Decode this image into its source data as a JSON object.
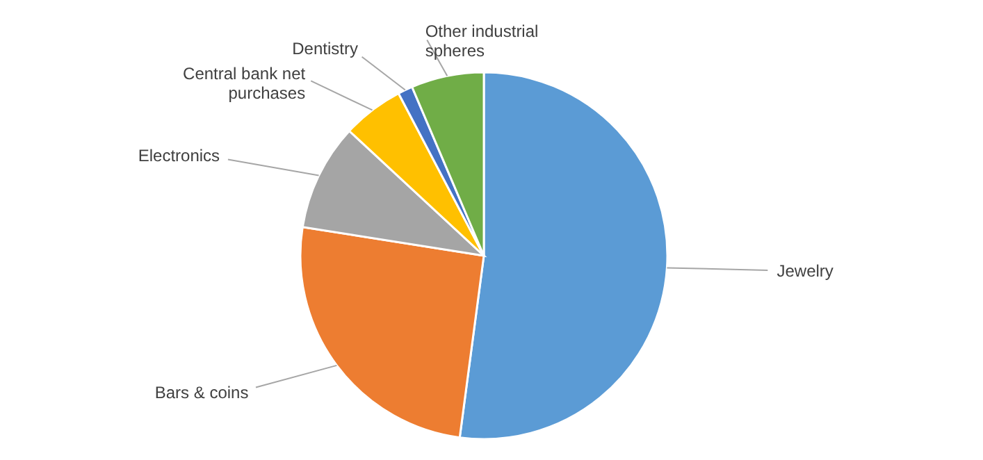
{
  "chart_data": {
    "type": "pie",
    "categories": [
      "Jewelry",
      "Bars & coins",
      "Electronics",
      "Central bank net\npurchases",
      "Dentistry",
      "Other industrial\nspheres"
    ],
    "values": [
      52.1,
      25.4,
      9.4,
      5.4,
      1.3,
      6.4
    ],
    "colors": [
      "#5b9bd5",
      "#ed7d31",
      "#a5a5a5",
      "#ffc000",
      "#4472c4",
      "#70ad47"
    ]
  }
}
